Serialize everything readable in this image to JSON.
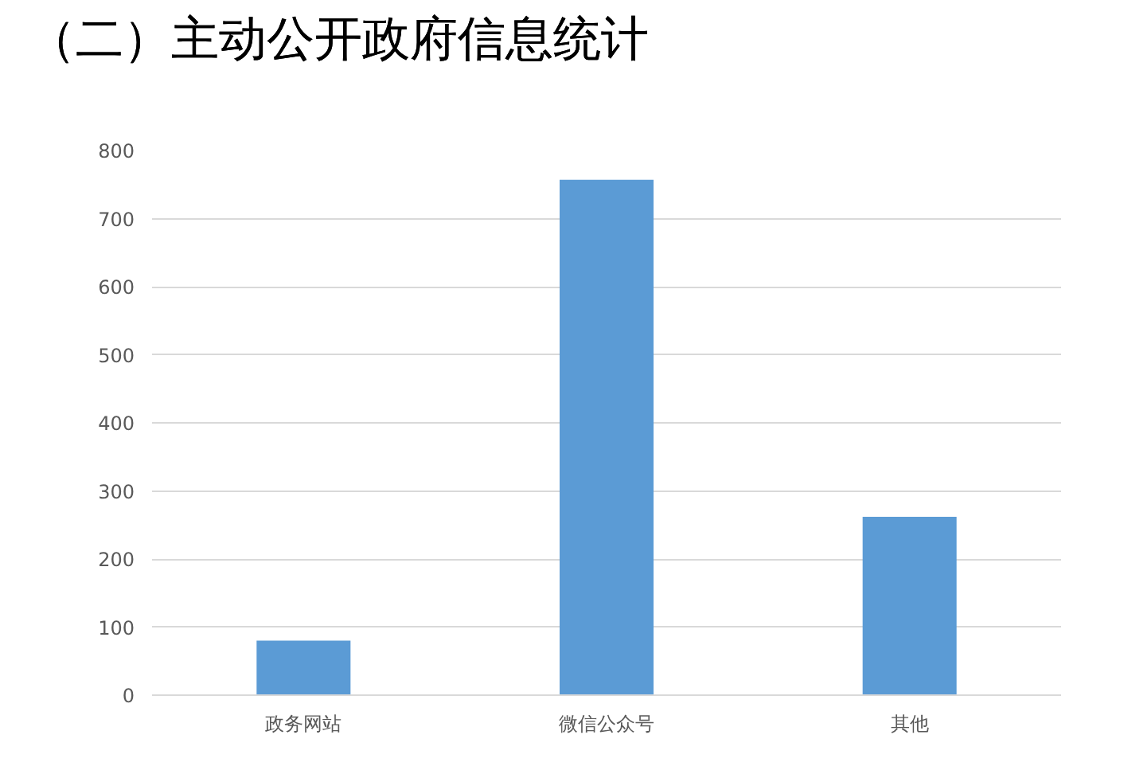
{
  "chart_data": {
    "type": "bar",
    "title": "（二）主动公开政府信息统计",
    "categories": [
      "政务网站",
      "微信公众号",
      "其他"
    ],
    "values": [
      80,
      757,
      262
    ],
    "color": "#5b9bd5",
    "ylim": [
      0,
      800
    ],
    "yticks": [
      0,
      100,
      200,
      300,
      400,
      500,
      600,
      700,
      800
    ],
    "grid": "y"
  }
}
